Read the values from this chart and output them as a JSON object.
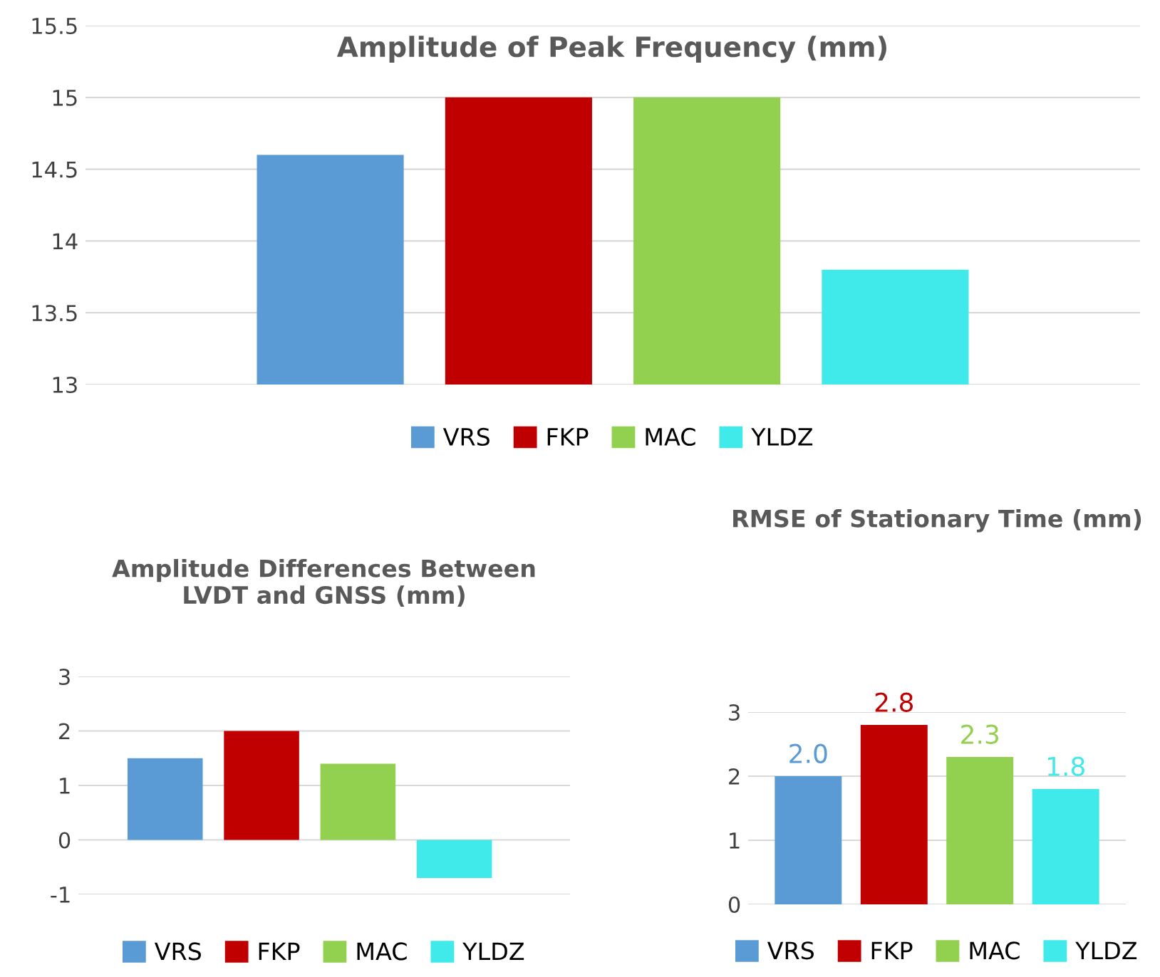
{
  "chart_data": [
    {
      "type": "bar",
      "title": "Amplitude of Peak Frequency (mm)",
      "categories": [
        null,
        null,
        null,
        null
      ],
      "series": [
        {
          "name": "VRS",
          "color": "#5b9bd5",
          "values": [
            14.6,
            null,
            null,
            null
          ]
        },
        {
          "name": "FKP",
          "color": "#c00000",
          "values": [
            null,
            15.0,
            null,
            null
          ]
        },
        {
          "name": "MAC",
          "color": "#92d050",
          "values": [
            null,
            null,
            15.0,
            null
          ]
        },
        {
          "name": "YLDZ",
          "color": "#40eaea",
          "values": [
            null,
            null,
            null,
            13.8
          ]
        }
      ],
      "ylim": [
        13,
        15.5
      ],
      "yticks": [
        13,
        13.5,
        14,
        14.5,
        15,
        15.5
      ],
      "grid": "y",
      "legend": "bottom"
    },
    {
      "type": "bar",
      "title": "Amplitude Differences Between\nLVDT and GNSS (mm)",
      "categories": [
        null,
        null,
        null,
        null
      ],
      "series": [
        {
          "name": "VRS",
          "color": "#5b9bd5",
          "values": [
            1.5,
            null,
            null,
            null
          ]
        },
        {
          "name": "FKP",
          "color": "#c00000",
          "values": [
            null,
            2.0,
            null,
            null
          ]
        },
        {
          "name": "MAC",
          "color": "#92d050",
          "values": [
            null,
            null,
            1.4,
            null
          ]
        },
        {
          "name": "YLDZ",
          "color": "#40eaea",
          "values": [
            null,
            null,
            null,
            -0.7
          ]
        }
      ],
      "ylim": [
        -1,
        3
      ],
      "yticks": [
        -1,
        0,
        1,
        2,
        3
      ],
      "grid": "y",
      "legend": "bottom"
    },
    {
      "type": "bar",
      "title": "RMSE of Stationary Time (mm)",
      "categories": [
        null,
        null,
        null,
        null
      ],
      "series": [
        {
          "name": "VRS",
          "color": "#5b9bd5",
          "values": [
            2.0,
            null,
            null,
            null
          ],
          "value_labels": [
            "2.0",
            null,
            null,
            null
          ]
        },
        {
          "name": "FKP",
          "color": "#c00000",
          "values": [
            null,
            2.8,
            null,
            null
          ],
          "value_labels": [
            null,
            "2.8",
            null,
            null
          ]
        },
        {
          "name": "MAC",
          "color": "#92d050",
          "values": [
            null,
            null,
            2.3,
            null
          ],
          "value_labels": [
            null,
            null,
            "2.3",
            null
          ]
        },
        {
          "name": "YLDZ",
          "color": "#40eaea",
          "values": [
            null,
            null,
            null,
            1.8
          ],
          "value_labels": [
            null,
            null,
            null,
            "1.8"
          ]
        }
      ],
      "ylim": [
        0,
        3
      ],
      "yticks": [
        0,
        1,
        2,
        3
      ],
      "grid": "y",
      "legend": "bottom"
    }
  ]
}
